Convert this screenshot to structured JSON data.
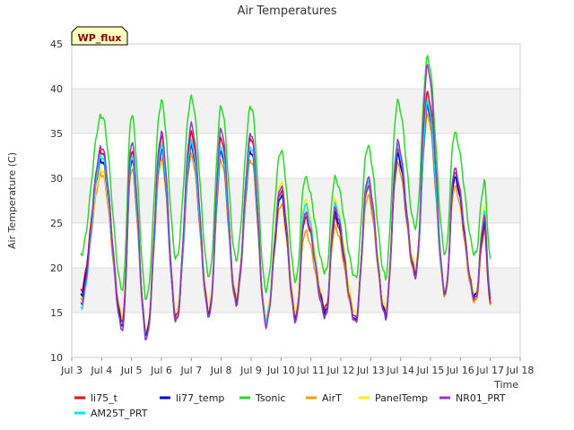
{
  "chart_data": {
    "type": "line",
    "title": "Air Temperatures",
    "xlabel": "Time",
    "ylabel": "Air Temperature (C)",
    "xlim": [
      3,
      18
    ],
    "ylim": [
      10,
      45
    ],
    "x_ticks": [
      3,
      4,
      5,
      6,
      7,
      8,
      9,
      10,
      11,
      12,
      13,
      14,
      15,
      16,
      17,
      18
    ],
    "x_tick_labels": [
      "Jul 3",
      "Jul 4",
      "Jul 5",
      "Jul 6",
      "Jul 7",
      "Jul 8",
      "Jul 9",
      "Jul 10",
      "Jul 11",
      "Jul 12",
      "Jul 13",
      "Jul 14",
      "Jul 15",
      "Jul 16",
      "Jul 17",
      "Jul 18"
    ],
    "y_ticks": [
      10,
      15,
      20,
      25,
      30,
      35,
      40,
      45
    ],
    "y_tick_labels": [
      "10",
      "15",
      "20",
      "25",
      "30",
      "35",
      "40",
      "45"
    ],
    "grid": "horizontal bands",
    "legend_position": "bottom",
    "annotation": "WP_flux",
    "series": [
      {
        "name": "li75_t",
        "color": "#e8001c",
        "daily_min": [
          [
            3.3,
            17.5
          ],
          [
            4.7,
            14.0
          ],
          [
            5.5,
            12.5
          ],
          [
            6.5,
            14.5
          ],
          [
            7.6,
            15.0
          ],
          [
            8.5,
            16.5
          ],
          [
            9.5,
            14.0
          ],
          [
            10.5,
            14.5
          ],
          [
            11.5,
            15.5
          ],
          [
            12.5,
            14.5
          ],
          [
            13.5,
            15.0
          ],
          [
            14.5,
            19.5
          ],
          [
            15.5,
            17.0
          ],
          [
            16.5,
            16.5
          ],
          [
            17.0,
            16.0
          ]
        ],
        "daily_max": [
          [
            4.0,
            33.0
          ],
          [
            5.0,
            33.0
          ],
          [
            6.0,
            34.5
          ],
          [
            7.0,
            35.0
          ],
          [
            8.0,
            34.5
          ],
          [
            9.0,
            34.5
          ],
          [
            10.0,
            28.5
          ],
          [
            10.8,
            25.5
          ],
          [
            11.8,
            25.5
          ],
          [
            12.9,
            29.0
          ],
          [
            13.9,
            33.0
          ],
          [
            14.9,
            39.5
          ],
          [
            15.8,
            30.5
          ],
          [
            16.8,
            24.5
          ]
        ]
      },
      {
        "name": "li77_temp",
        "color": "#0000cc",
        "daily_min": [
          [
            3.3,
            17.0
          ],
          [
            4.7,
            13.5
          ],
          [
            5.5,
            12.5
          ],
          [
            6.5,
            14.0
          ],
          [
            7.6,
            14.8
          ],
          [
            8.5,
            16.2
          ],
          [
            9.5,
            14.0
          ],
          [
            10.5,
            14.2
          ],
          [
            11.5,
            15.0
          ],
          [
            12.5,
            14.2
          ],
          [
            13.5,
            14.8
          ],
          [
            14.5,
            19.2
          ],
          [
            15.5,
            17.2
          ],
          [
            16.5,
            16.8
          ],
          [
            17.0,
            16.5
          ]
        ],
        "daily_max": [
          [
            4.0,
            32.0
          ],
          [
            5.0,
            32.0
          ],
          [
            6.0,
            33.0
          ],
          [
            7.0,
            33.5
          ],
          [
            8.0,
            33.0
          ],
          [
            9.0,
            33.0
          ],
          [
            10.0,
            28.0
          ],
          [
            10.8,
            26.0
          ],
          [
            11.8,
            26.0
          ],
          [
            12.9,
            29.5
          ],
          [
            13.9,
            32.5
          ],
          [
            14.9,
            38.0
          ],
          [
            15.8,
            30.0
          ],
          [
            16.8,
            25.0
          ]
        ]
      },
      {
        "name": "Tsonic",
        "color": "#22dd22",
        "daily_min": [
          [
            3.3,
            21.5
          ],
          [
            4.7,
            17.5
          ],
          [
            5.5,
            16.5
          ],
          [
            6.5,
            21.0
          ],
          [
            7.6,
            19.0
          ],
          [
            8.5,
            21.0
          ],
          [
            9.5,
            17.5
          ],
          [
            10.5,
            18.5
          ],
          [
            11.5,
            19.5
          ],
          [
            12.5,
            19.0
          ],
          [
            13.5,
            19.0
          ],
          [
            14.5,
            24.5
          ],
          [
            15.5,
            21.5
          ],
          [
            16.5,
            21.5
          ],
          [
            17.0,
            21.0
          ]
        ],
        "daily_max": [
          [
            4.0,
            37.0
          ],
          [
            5.0,
            37.0
          ],
          [
            6.0,
            38.5
          ],
          [
            7.0,
            39.0
          ],
          [
            8.0,
            38.0
          ],
          [
            9.0,
            38.0
          ],
          [
            10.0,
            33.0
          ],
          [
            10.8,
            30.0
          ],
          [
            11.8,
            30.0
          ],
          [
            12.9,
            33.5
          ],
          [
            13.9,
            38.5
          ],
          [
            14.9,
            43.5
          ],
          [
            15.8,
            35.0
          ],
          [
            16.8,
            29.5
          ]
        ]
      },
      {
        "name": "AirT",
        "color": "#ff9900",
        "daily_min": [
          [
            3.3,
            16.5
          ],
          [
            4.7,
            13.5
          ],
          [
            5.5,
            12.0
          ],
          [
            6.5,
            14.2
          ],
          [
            7.6,
            14.5
          ],
          [
            8.5,
            16.0
          ],
          [
            9.5,
            13.8
          ],
          [
            10.5,
            14.0
          ],
          [
            11.5,
            14.8
          ],
          [
            12.5,
            14.0
          ],
          [
            13.5,
            14.6
          ],
          [
            14.5,
            19.0
          ],
          [
            15.5,
            16.8
          ],
          [
            16.5,
            16.2
          ],
          [
            17.0,
            15.8
          ]
        ],
        "daily_max": [
          [
            4.0,
            30.5
          ],
          [
            5.0,
            31.0
          ],
          [
            6.0,
            32.0
          ],
          [
            7.0,
            32.5
          ],
          [
            8.0,
            32.0
          ],
          [
            9.0,
            32.0
          ],
          [
            10.0,
            27.0
          ],
          [
            10.8,
            24.0
          ],
          [
            11.8,
            24.5
          ],
          [
            12.9,
            28.0
          ],
          [
            13.9,
            31.5
          ],
          [
            14.9,
            37.0
          ],
          [
            15.8,
            29.0
          ],
          [
            16.8,
            24.0
          ]
        ]
      },
      {
        "name": "PanelTemp",
        "color": "#ffee00",
        "daily_min": [
          [
            3.3,
            17.0
          ],
          [
            4.7,
            14.5
          ],
          [
            5.5,
            13.0
          ],
          [
            6.5,
            15.0
          ],
          [
            7.6,
            15.5
          ],
          [
            8.5,
            17.0
          ],
          [
            9.5,
            14.5
          ],
          [
            10.5,
            15.0
          ],
          [
            11.5,
            15.5
          ],
          [
            12.5,
            15.0
          ],
          [
            13.5,
            15.5
          ],
          [
            14.5,
            20.0
          ],
          [
            15.5,
            17.5
          ],
          [
            16.5,
            17.0
          ],
          [
            17.0,
            16.5
          ]
        ],
        "daily_max": [
          [
            4.0,
            31.0
          ],
          [
            5.0,
            33.0
          ],
          [
            6.0,
            33.0
          ],
          [
            7.0,
            34.0
          ],
          [
            8.0,
            33.5
          ],
          [
            9.0,
            33.0
          ],
          [
            10.0,
            29.5
          ],
          [
            10.8,
            27.5
          ],
          [
            11.8,
            27.5
          ],
          [
            12.9,
            29.5
          ],
          [
            13.9,
            33.0
          ],
          [
            14.9,
            38.0
          ],
          [
            15.8,
            31.0
          ],
          [
            16.8,
            26.5
          ]
        ]
      },
      {
        "name": "NR01_PRT",
        "color": "#9933cc",
        "daily_min": [
          [
            3.3,
            16.0
          ],
          [
            4.7,
            13.0
          ],
          [
            5.5,
            12.0
          ],
          [
            6.5,
            14.0
          ],
          [
            7.6,
            14.5
          ],
          [
            8.5,
            16.0
          ],
          [
            9.5,
            13.5
          ],
          [
            10.5,
            14.0
          ],
          [
            11.5,
            14.5
          ],
          [
            12.5,
            14.0
          ],
          [
            13.5,
            14.5
          ],
          [
            14.5,
            19.0
          ],
          [
            15.5,
            17.0
          ],
          [
            16.5,
            16.5
          ],
          [
            17.0,
            16.5
          ]
        ],
        "daily_max": [
          [
            4.0,
            33.5
          ],
          [
            5.0,
            34.0
          ],
          [
            6.0,
            35.0
          ],
          [
            7.0,
            36.0
          ],
          [
            8.0,
            35.5
          ],
          [
            9.0,
            35.0
          ],
          [
            10.0,
            29.0
          ],
          [
            10.8,
            26.0
          ],
          [
            11.8,
            26.5
          ],
          [
            12.9,
            30.0
          ],
          [
            13.9,
            34.0
          ],
          [
            14.9,
            42.5
          ],
          [
            15.8,
            31.0
          ],
          [
            16.8,
            25.5
          ]
        ]
      },
      {
        "name": "AM25T_PRT",
        "color": "#00e5ff",
        "daily_min": [
          [
            3.3,
            15.5
          ],
          [
            4.7,
            13.0
          ],
          [
            5.5,
            12.0
          ],
          [
            6.5,
            14.0
          ],
          [
            7.6,
            14.5
          ],
          [
            8.5,
            16.0
          ],
          [
            9.5,
            14.0
          ],
          [
            10.5,
            14.0
          ],
          [
            11.5,
            14.5
          ],
          [
            12.5,
            14.0
          ],
          [
            13.5,
            14.5
          ],
          [
            14.5,
            19.0
          ],
          [
            15.5,
            17.0
          ],
          [
            16.5,
            16.5
          ],
          [
            17.0,
            17.0
          ]
        ],
        "daily_max": [
          [
            4.0,
            32.5
          ],
          [
            5.0,
            32.5
          ],
          [
            6.0,
            33.5
          ],
          [
            7.0,
            34.0
          ],
          [
            8.0,
            33.5
          ],
          [
            9.0,
            33.5
          ],
          [
            10.0,
            29.0
          ],
          [
            10.8,
            27.0
          ],
          [
            11.8,
            27.0
          ],
          [
            12.9,
            29.5
          ],
          [
            13.9,
            33.5
          ],
          [
            14.9,
            38.5
          ],
          [
            15.8,
            31.0
          ],
          [
            16.8,
            26.0
          ]
        ]
      }
    ]
  }
}
